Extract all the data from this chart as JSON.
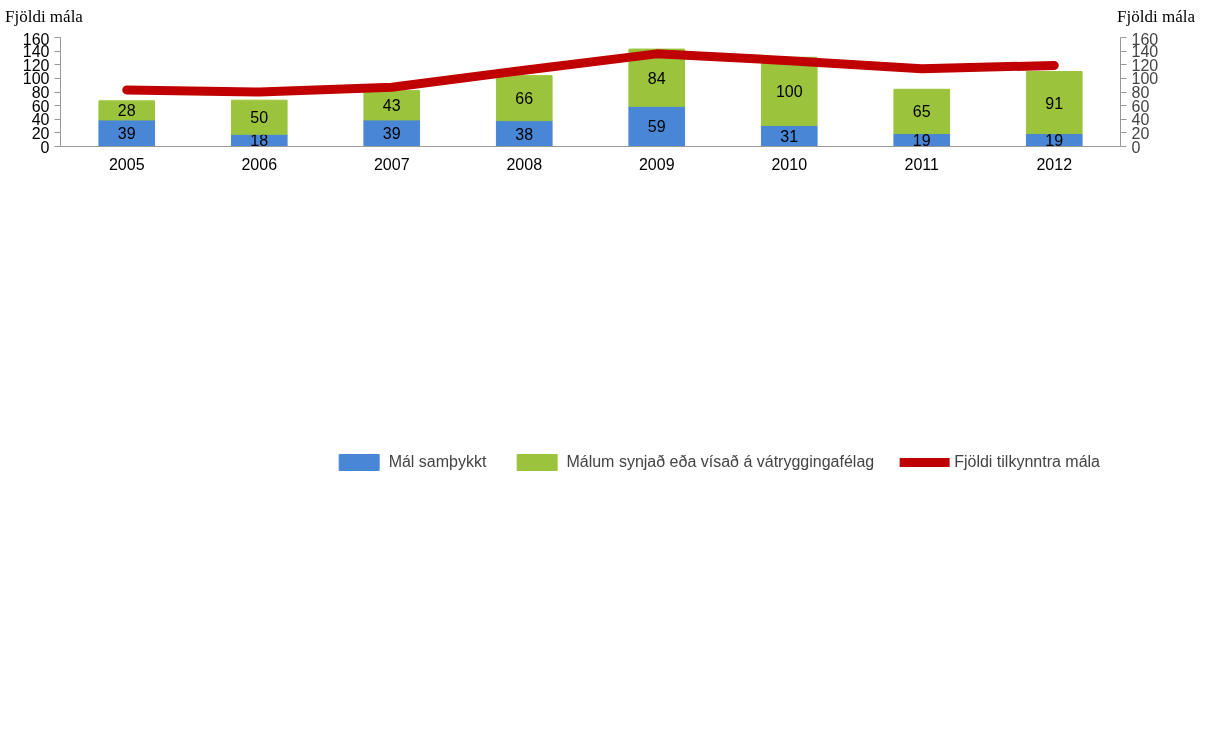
{
  "chart_data": {
    "type": "bar",
    "stacked": true,
    "ylabel": "Fjöldi mála",
    "y2label": "Fjöldi mála",
    "categories": [
      "2005",
      "2006",
      "2007",
      "2008",
      "2009",
      "2010",
      "2011",
      "2012"
    ],
    "series": [
      {
        "name": "Mál samþykkt",
        "color": "#4a86d6",
        "values": [
          39,
          18,
          39,
          38,
          59,
          31,
          19,
          19
        ],
        "value_labels": [
          "39",
          "18",
          "39",
          "38",
          "59",
          "31",
          "19",
          "19"
        ]
      },
      {
        "name": "Málum synjað eða vísað á vátryggingafélag",
        "color": "#9bc43c",
        "values": [
          28,
          50,
          43,
          66,
          84,
          100,
          65,
          91
        ],
        "value_labels": [
          "28",
          "50",
          "43",
          "66",
          "84",
          "100",
          "65",
          "91"
        ]
      },
      {
        "name": "Fjöldi tilkynntra mála",
        "type": "line",
        "color": "#c00000",
        "values": [
          83,
          80,
          87,
          112,
          136,
          126,
          114,
          119
        ]
      }
    ],
    "ylim": [
      0,
      160
    ],
    "yticks": [
      0,
      20,
      40,
      60,
      80,
      100,
      120,
      140,
      160
    ],
    "y2lim": [
      0,
      160
    ],
    "y2ticks": [
      0,
      20,
      40,
      60,
      80,
      100,
      120,
      140,
      160
    ],
    "grid": false,
    "legend": "bottom",
    "marker": "none",
    "line_style": "solid"
  }
}
